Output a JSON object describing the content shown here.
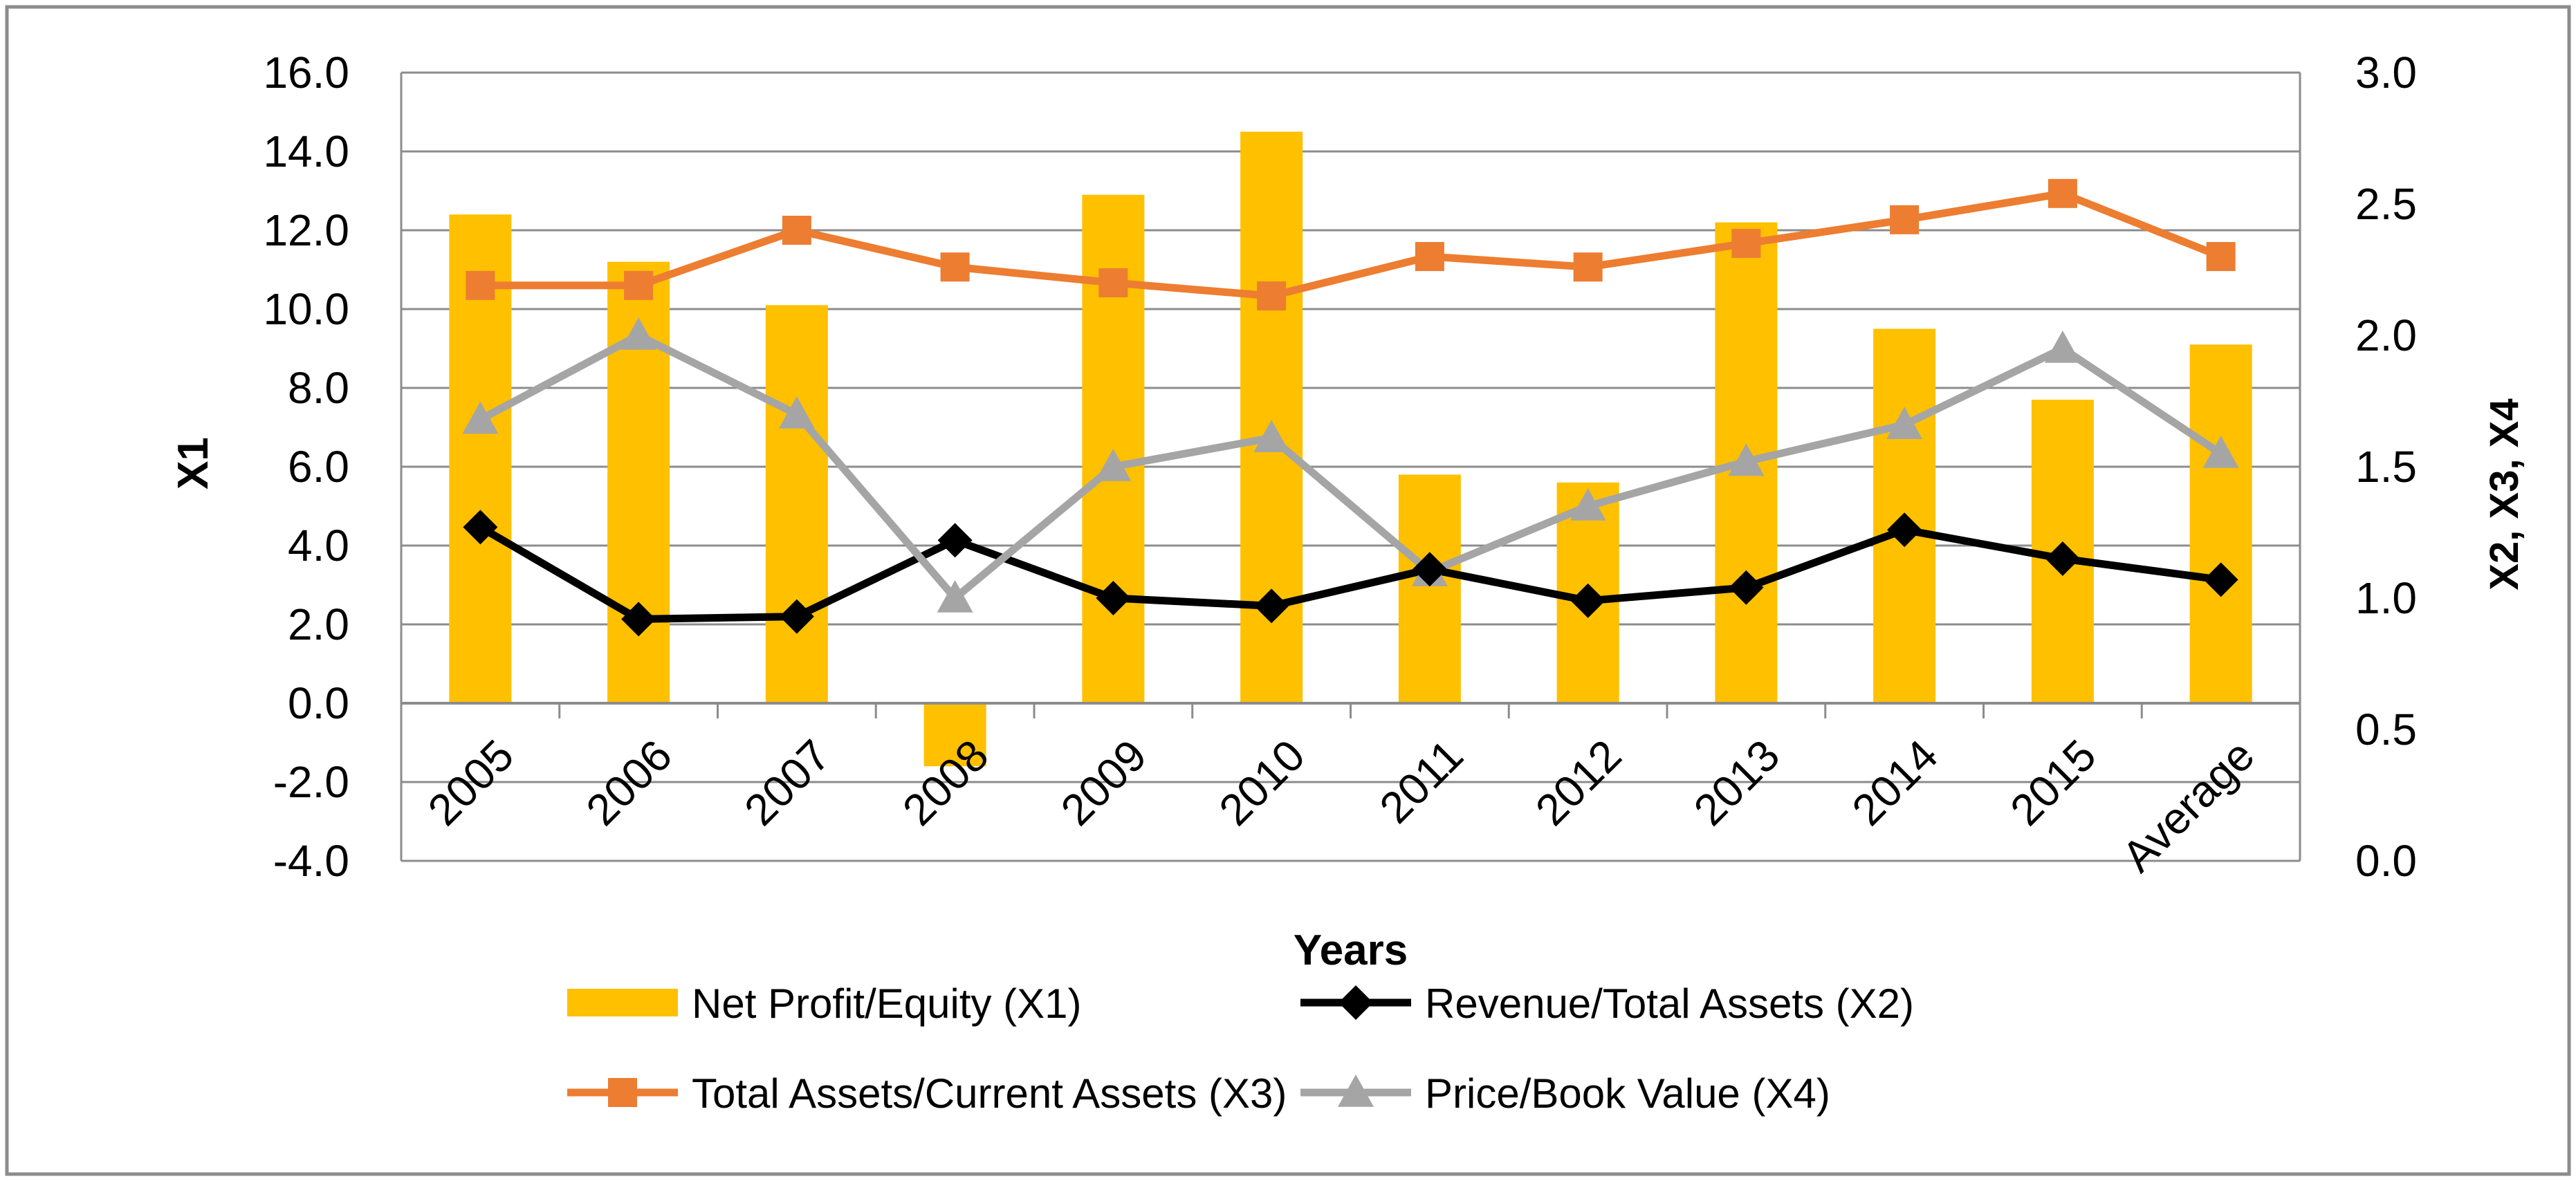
{
  "chart_data": {
    "type": "bar",
    "categories": [
      "2005",
      "2006",
      "2007",
      "2008",
      "2009",
      "2010",
      "2011",
      "2012",
      "2013",
      "2014",
      "2015",
      "Average"
    ],
    "xlabel": "Years",
    "ylabel_left": "X1",
    "ylabel_right": "X2, X3, X4",
    "y_left": {
      "min": -4,
      "max": 16,
      "step": 2,
      "tick_labels": [
        "-4.0",
        "-2.0",
        "0.0",
        "2.0",
        "4.0",
        "6.0",
        "8.0",
        "10.0",
        "12.0",
        "14.0",
        "16.0"
      ]
    },
    "y_right": {
      "min": 0,
      "max": 3,
      "step": 0.5,
      "tick_labels": [
        "0.0",
        "0.5",
        "1.0",
        "1.5",
        "2.0",
        "2.5",
        "3.0"
      ]
    },
    "grid": true,
    "legend_position": "bottom",
    "series": [
      {
        "name": "Net Profit/Equity (X1)",
        "kind": "bar",
        "axis": "left",
        "color": "#FFC000",
        "values": [
          12.4,
          11.2,
          10.1,
          -1.6,
          12.9,
          14.5,
          5.8,
          5.6,
          12.2,
          9.5,
          7.7,
          9.1
        ]
      },
      {
        "name": "Revenue/Total Assets (X2)",
        "kind": "line",
        "axis": "right",
        "color": "#000000",
        "marker": "diamond",
        "values": [
          1.27,
          0.92,
          0.93,
          1.22,
          1.0,
          0.97,
          1.11,
          0.99,
          1.04,
          1.26,
          1.15,
          1.07
        ]
      },
      {
        "name": "Total Assets/Current Assets (X3)",
        "kind": "line",
        "axis": "right",
        "color": "#ED7D31",
        "marker": "square",
        "values": [
          2.19,
          2.19,
          2.4,
          2.26,
          2.2,
          2.15,
          2.3,
          2.26,
          2.35,
          2.44,
          2.54,
          2.3
        ]
      },
      {
        "name": "Price/Book Value (X4)",
        "kind": "line",
        "axis": "right",
        "color": "#A5A5A5",
        "marker": "triangle",
        "values": [
          1.68,
          2.0,
          1.7,
          1.0,
          1.5,
          1.61,
          1.1,
          1.35,
          1.52,
          1.66,
          1.95,
          1.55
        ]
      }
    ]
  }
}
